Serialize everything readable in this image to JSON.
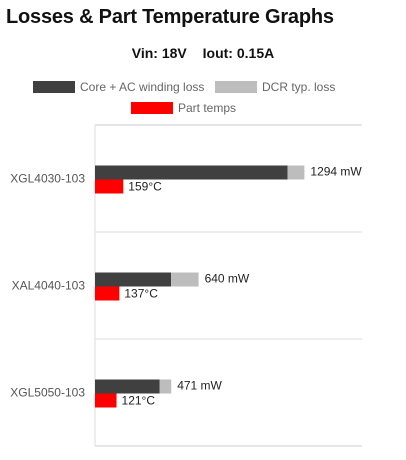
{
  "title": "Losses & Part Temperature Graphs",
  "conditions": {
    "vin": "Vin: 18V",
    "iout": "Iout: 0.15A"
  },
  "legend": [
    {
      "label": "Core + AC winding loss",
      "color": "#404040"
    },
    {
      "label": "DCR typ. loss",
      "color": "#bdbdbd"
    },
    {
      "label": "Part temps",
      "color": "#ff0000"
    }
  ],
  "chart_data": {
    "type": "bar",
    "orientation": "horizontal",
    "stacked": true,
    "categories": [
      "XGL4030-103",
      "XAL4040-103",
      "XGL5050-103"
    ],
    "series": [
      {
        "name": "Core + AC winding loss",
        "color": "#404040",
        "values": [
          1190,
          470,
          400
        ]
      },
      {
        "name": "DCR typ. loss",
        "color": "#bdbdbd",
        "values": [
          104,
          170,
          71
        ]
      },
      {
        "name": "Part temps",
        "color": "#ff0000",
        "values": [
          159,
          137,
          121
        ]
      }
    ],
    "loss_labels": [
      "1294 mW",
      "640 mW",
      "471 mW"
    ],
    "temp_labels": [
      "159°C",
      "137°C",
      "121°C"
    ],
    "loss_axis_max": 1650,
    "temp_axis_max": 1500,
    "grid": true,
    "legend_position": "top"
  }
}
